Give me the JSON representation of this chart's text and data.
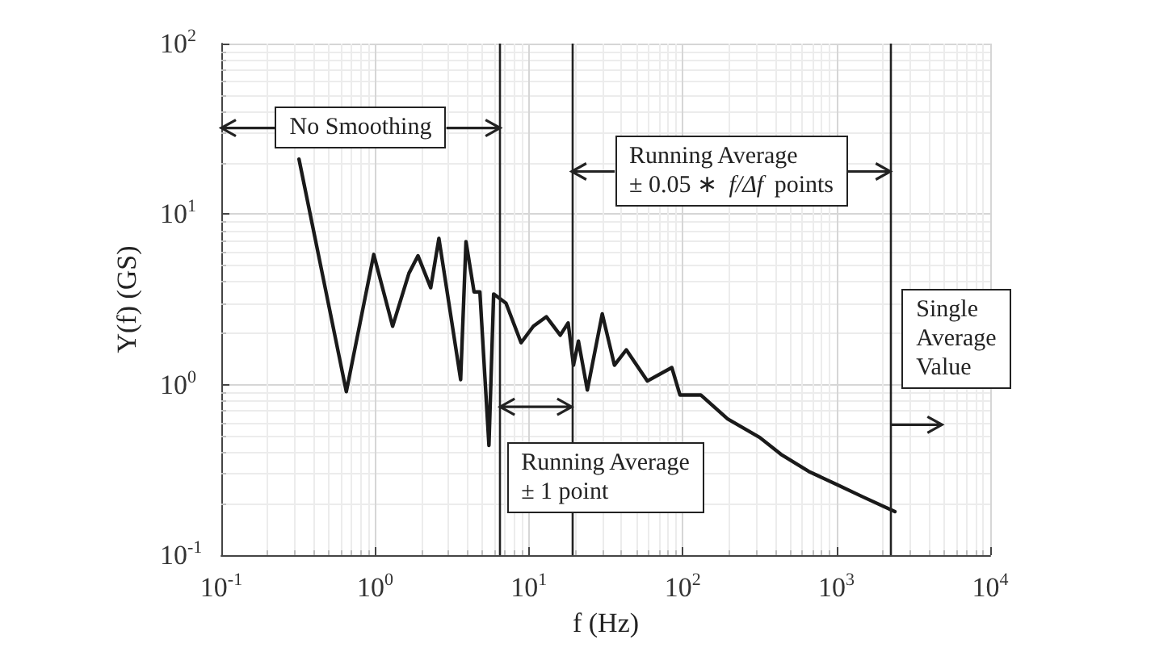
{
  "chart_data": {
    "type": "line",
    "xlabel": "f (Hz)",
    "ylabel": "Y(f) (GS)",
    "log": "xy",
    "grid": true,
    "marker": "none",
    "line_style": "solid",
    "xlim": [
      0.1,
      10000
    ],
    "ylim": [
      0.1,
      100
    ],
    "xticks": [
      {
        "value": 0.1,
        "label": "10$^{-1}$"
      },
      {
        "value": 1,
        "label": "10$^{0}$"
      },
      {
        "value": 10,
        "label": "10$^{1}$"
      },
      {
        "value": 100,
        "label": "10$^{2}$"
      },
      {
        "value": 1000,
        "label": "10$^{3}$"
      },
      {
        "value": 10000,
        "label": "10$^{4}$"
      }
    ],
    "yticks": [
      {
        "value": 0.1,
        "label": "10$^{-1}$"
      },
      {
        "value": 1,
        "label": "10$^{0}$"
      },
      {
        "value": 10,
        "label": "10$^{1}$"
      },
      {
        "value": 100,
        "label": "10$^{2}$"
      }
    ],
    "series": [
      {
        "color": "#1a1a1a",
        "x": [
          0.32,
          0.65,
          0.98,
          1.3,
          1.66,
          1.9,
          2.3,
          2.6,
          3.6,
          3.9,
          4.4,
          4.8,
          5.5,
          5.9,
          7.1,
          8.9,
          10.7,
          13,
          16,
          18,
          19.5,
          21,
          24,
          30,
          36,
          43,
          59,
          85,
          96,
          131,
          196,
          317,
          436,
          660,
          1000,
          1480,
          2400
        ],
        "values": [
          21,
          0.91,
          5.8,
          2.2,
          4.5,
          5.7,
          3.7,
          7.2,
          1.07,
          6.9,
          3.5,
          3.5,
          0.44,
          3.4,
          3.0,
          1.76,
          2.2,
          2.5,
          1.95,
          2.3,
          1.3,
          1.8,
          0.93,
          2.6,
          1.3,
          1.6,
          1.05,
          1.26,
          0.87,
          0.87,
          0.63,
          0.49,
          0.39,
          0.31,
          0.26,
          0.22,
          0.18
        ]
      }
    ],
    "ref_lines": [
      {
        "axis": "x",
        "value": 6.5,
        "color": "#222222"
      },
      {
        "axis": "x",
        "value": 19,
        "color": "#222222"
      },
      {
        "axis": "x",
        "value": 2240,
        "color": "#222222"
      }
    ],
    "annotations": [
      "No Smoothing",
      "Running Average\n± 1 point",
      "Running Average\n± 0.05 ∗ f/Δf points",
      "Single\nAverage\nValue"
    ]
  }
}
